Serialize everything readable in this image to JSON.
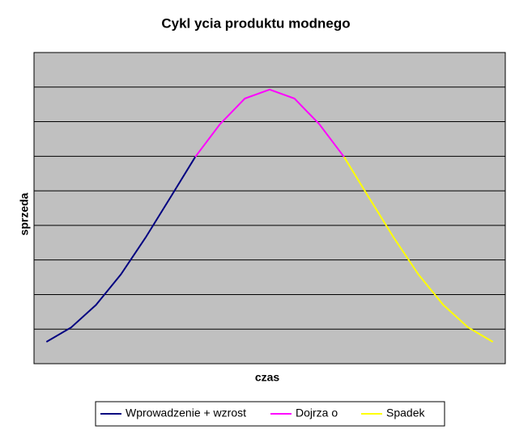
{
  "chart_data": {
    "type": "line",
    "title": "Cykl   ycia produktu modnego",
    "x_label": "czas",
    "y_label": "sprzeda",
    "categories": [
      null,
      null,
      null,
      null,
      null,
      null,
      null,
      null,
      null,
      null,
      null,
      null,
      null,
      null,
      null,
      null,
      null,
      null,
      null
    ],
    "series": [
      {
        "name": "Wprowadzenie + wzrost",
        "color": "#000080",
        "values": [
          0.63,
          1.05,
          1.7,
          2.58,
          3.65,
          4.81,
          5.98,
          null,
          null,
          null,
          null,
          null,
          null,
          null,
          null,
          null,
          null,
          null,
          null
        ]
      },
      {
        "name": "Dojrza o",
        "color": "#ff00ff",
        "values": [
          null,
          null,
          null,
          null,
          null,
          null,
          5.98,
          6.93,
          7.67,
          7.93,
          7.67,
          6.93,
          5.98,
          null,
          null,
          null,
          null,
          null,
          null
        ]
      },
      {
        "name": "Spadek",
        "color": "#ffff00",
        "values": [
          null,
          null,
          null,
          null,
          null,
          null,
          null,
          null,
          null,
          null,
          null,
          null,
          5.98,
          4.81,
          3.65,
          2.58,
          1.7,
          1.05,
          0.63
        ]
      }
    ],
    "ylim": [
      0,
      9
    ],
    "ygrid": [
      1,
      2,
      3,
      4,
      5,
      6,
      7,
      8
    ],
    "grid": true,
    "legend": "bottom",
    "plot_background": "#c0c0c0"
  }
}
